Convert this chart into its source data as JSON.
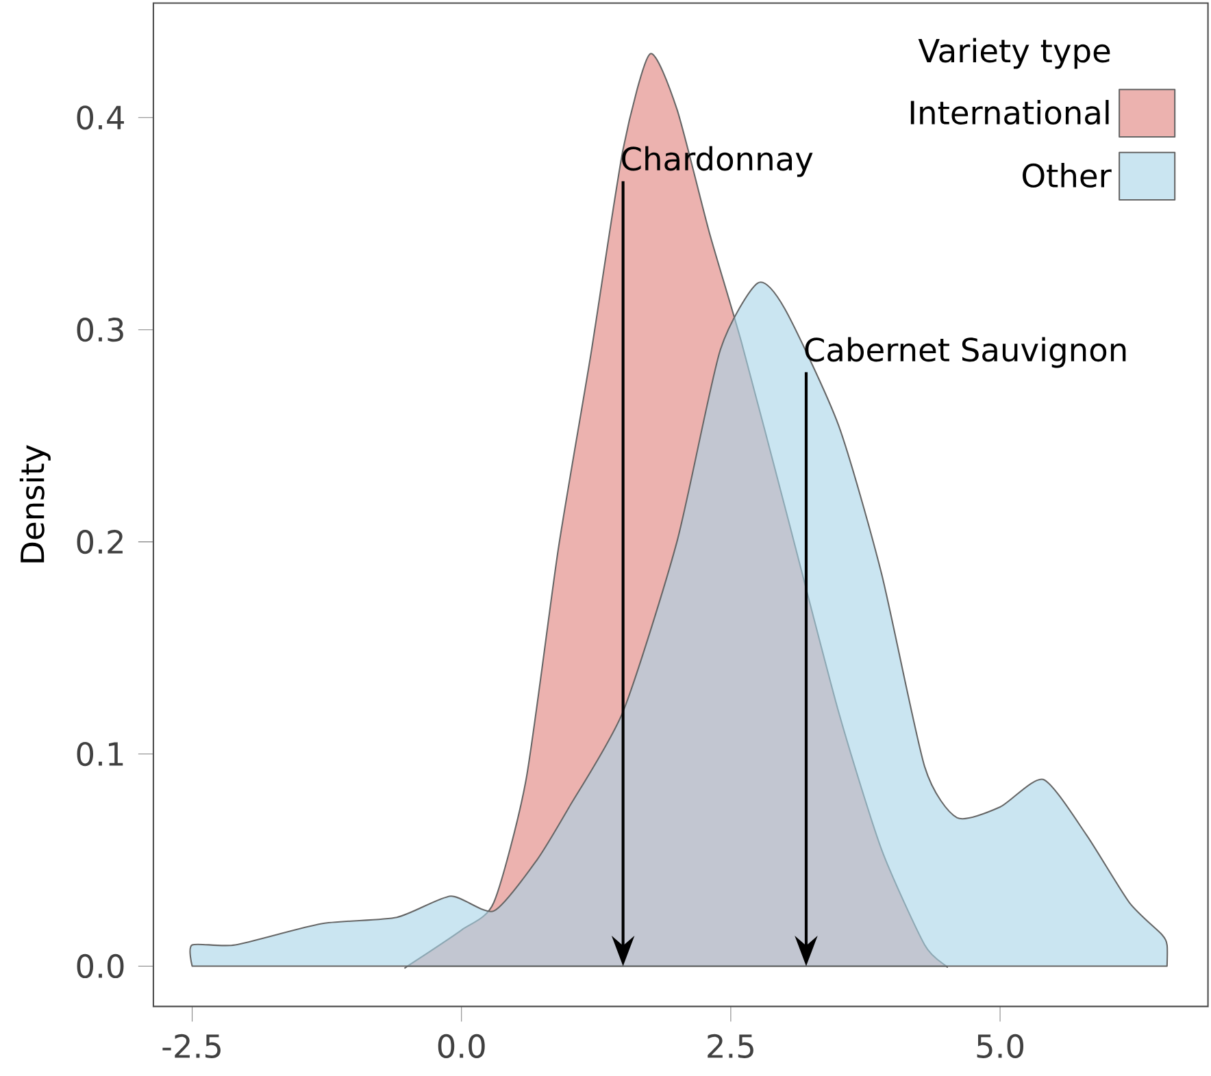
{
  "chart_data": {
    "type": "area",
    "ylabel": "Density",
    "legend_title": "Variety type",
    "series": [
      {
        "name": "International",
        "color": "#e07f7a",
        "x": [
          -0.5,
          0.0,
          0.3,
          0.6,
          0.9,
          1.2,
          1.5,
          1.75,
          2.0,
          2.3,
          2.6,
          3.0,
          3.5,
          3.9,
          4.3,
          4.5
        ],
        "values": [
          0.0,
          0.017,
          0.03,
          0.088,
          0.197,
          0.288,
          0.385,
          0.43,
          0.404,
          0.346,
          0.294,
          0.217,
          0.12,
          0.055,
          0.01,
          0.0
        ]
      },
      {
        "name": "Other",
        "color": "#a6d3e8",
        "x": [
          -2.5,
          -2.1,
          -1.3,
          -0.6,
          -0.1,
          0.3,
          0.7,
          1.0,
          1.5,
          2.0,
          2.4,
          2.75,
          3.0,
          3.5,
          3.9,
          4.3,
          4.6,
          5.0,
          5.4,
          5.8,
          6.2,
          6.5,
          6.55
        ],
        "values": [
          0.01,
          0.01,
          0.02,
          0.023,
          0.033,
          0.026,
          0.05,
          0.075,
          0.12,
          0.2,
          0.29,
          0.322,
          0.31,
          0.255,
          0.185,
          0.094,
          0.07,
          0.075,
          0.088,
          0.062,
          0.03,
          0.015,
          0.01
        ]
      }
    ],
    "annotations": [
      {
        "text": "Chardonnay",
        "x": 1.5,
        "y": 0.37
      },
      {
        "text": "Cabernet Sauvignon",
        "x": 3.2,
        "y": 0.28
      }
    ],
    "xlim": [
      -2.86,
      6.93
    ],
    "ylim": [
      -0.019,
      0.454
    ],
    "xticks": [
      -2.5,
      {
        "value": 0,
        "label": "0.0"
      },
      2.5,
      {
        "value": 5,
        "label": "5.0"
      }
    ],
    "yticks": [
      {
        "value": 0,
        "label": "0.0"
      },
      0.1,
      0.2,
      0.3,
      0.4
    ],
    "legend": "top right",
    "grid": false
  }
}
